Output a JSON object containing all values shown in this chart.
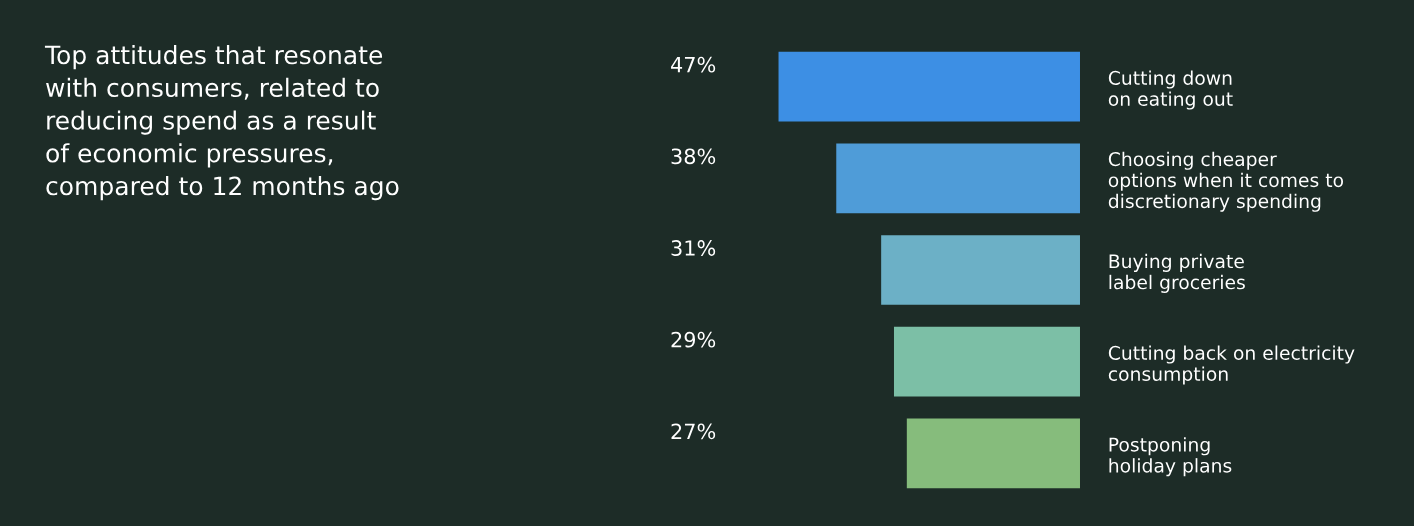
{
  "chart_data": {
    "type": "bar",
    "orientation": "horizontal",
    "title": "Top attitudes that resonate\nwith consumers, related to\nreducing spend as a result\nof economic pressures,\ncompared to 12 months ago",
    "categories": [
      "Cutting down\non eating out",
      "Choosing cheaper\noptions when it comes to\ndiscretionary spending",
      "Buying private\nlabel groceries",
      "Cutting back on electricity\nconsumption",
      "Postponing\nholiday plans"
    ],
    "values": [
      47,
      38,
      31,
      29,
      27
    ],
    "colors": [
      "#3d8fe4",
      "#4f9cd8",
      "#6cb0c6",
      "#7cbfa6",
      "#86bc7c"
    ],
    "value_labels": [
      "47%",
      "38%",
      "31%",
      "29%",
      "27%"
    ],
    "tick_labels": "y",
    "grid": false,
    "legend": false
  }
}
